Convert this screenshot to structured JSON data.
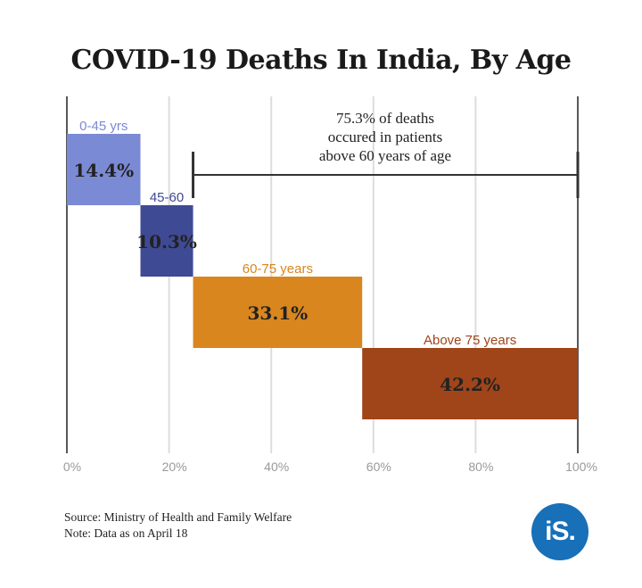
{
  "title": "COVID-19 Deaths In India, By Age",
  "annotation": {
    "lines": [
      "75.3% of deaths",
      "occured in patients",
      "above 60 years of age"
    ]
  },
  "footer": {
    "source": "Source: Ministry of Health and Family Welfare",
    "note": "Note: Data as on April 18"
  },
  "logo_text": "iS.",
  "chart_data": {
    "type": "bar",
    "subtype": "waterfall-horizontal",
    "xlim": [
      0,
      100
    ],
    "x_ticks": [
      "0%",
      "20%",
      "40%",
      "60%",
      "80%",
      "100%"
    ],
    "grid": true,
    "categories": [
      "0-45 yrs",
      "45-60",
      "60-75 years",
      "Above 75 years"
    ],
    "values": [
      14.4,
      10.3,
      33.1,
      42.2
    ],
    "value_labels": [
      "14.4%",
      "10.3%",
      "33.1%",
      "42.2%"
    ],
    "colors": [
      "#7b8ad4",
      "#3f4a94",
      "#d9861f",
      "#a04419"
    ],
    "label_colors": [
      "#7b8ad4",
      "#3f4a94",
      "#d9861f",
      "#a04419"
    ],
    "bracket_range": [
      24.7,
      100
    ]
  }
}
